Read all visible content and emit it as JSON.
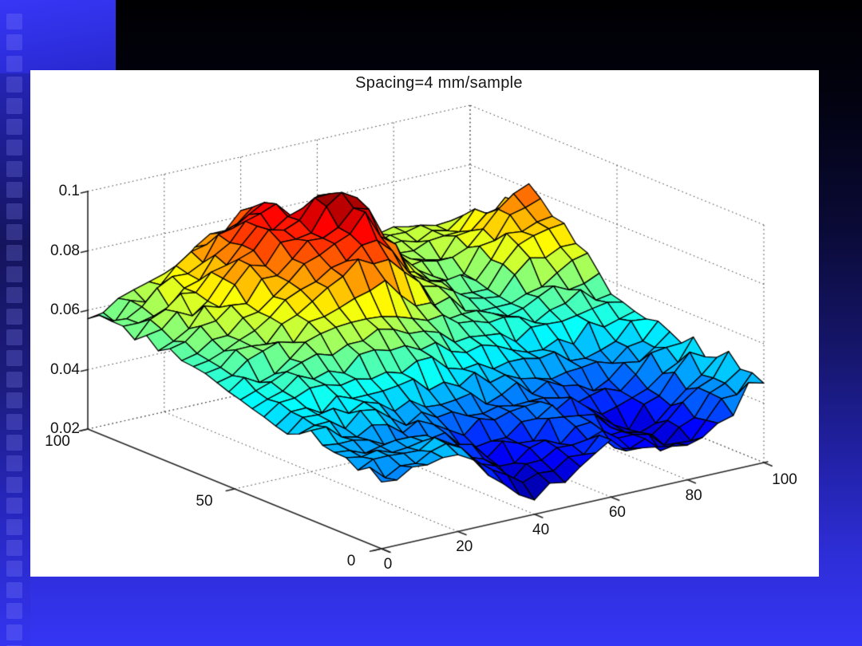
{
  "slide": {
    "background_top_color": "#000002",
    "background_bottom_color": "#3535f5",
    "accent_blue": "#3333f0",
    "sidebar": {
      "square_count": 31
    }
  },
  "chart_data": {
    "type": "surface",
    "title": "Spacing=4 mm/sample",
    "colormap": "jet",
    "grid_style": "dotted",
    "legend": "none",
    "x_axis": {
      "range": [
        0,
        100
      ],
      "ticks": [
        0,
        20,
        40,
        60,
        80,
        100
      ],
      "tick_labels": [
        "0",
        "20",
        "40",
        "60",
        "80",
        "100"
      ]
    },
    "y_axis": {
      "range": [
        0,
        100
      ],
      "ticks": [
        0,
        50,
        100
      ],
      "tick_labels": [
        "0",
        "50",
        "100"
      ]
    },
    "z_axis": {
      "range": [
        0.02,
        0.1
      ],
      "ticks": [
        0.02,
        0.04,
        0.06,
        0.08,
        0.1
      ],
      "tick_labels": [
        "0.02",
        "0.04",
        "0.06",
        "0.08",
        "0.1"
      ]
    },
    "sample_spacing_mm_per_sample": 4,
    "mesh_divisions": 25,
    "surface_z_estimates": {
      "x_coords": [
        0,
        10,
        20,
        30,
        40,
        50,
        60,
        70,
        80,
        90,
        100
      ],
      "y_coords": [
        0,
        10,
        20,
        30,
        40,
        50,
        60,
        70,
        80,
        90,
        100
      ],
      "values_rows_y0_to_y100": [
        [
          0.044,
          0.042,
          0.046,
          0.035,
          0.027,
          0.031,
          0.037,
          0.034,
          0.03,
          0.04,
          0.048
        ],
        [
          0.046,
          0.044,
          0.048,
          0.039,
          0.03,
          0.033,
          0.039,
          0.035,
          0.028,
          0.038,
          0.05
        ],
        [
          0.047,
          0.046,
          0.044,
          0.041,
          0.036,
          0.038,
          0.04,
          0.036,
          0.031,
          0.042,
          0.05
        ],
        [
          0.048,
          0.048,
          0.047,
          0.045,
          0.043,
          0.042,
          0.043,
          0.039,
          0.038,
          0.045,
          0.05
        ],
        [
          0.05,
          0.052,
          0.054,
          0.056,
          0.055,
          0.051,
          0.049,
          0.046,
          0.044,
          0.048,
          0.052
        ],
        [
          0.052,
          0.056,
          0.06,
          0.064,
          0.066,
          0.06,
          0.056,
          0.054,
          0.052,
          0.056,
          0.056
        ],
        [
          0.054,
          0.059,
          0.065,
          0.072,
          0.08,
          0.076,
          0.062,
          0.057,
          0.056,
          0.062,
          0.064
        ],
        [
          0.056,
          0.062,
          0.07,
          0.078,
          0.086,
          0.094,
          0.07,
          0.06,
          0.058,
          0.072,
          0.076
        ],
        [
          0.058,
          0.064,
          0.073,
          0.082,
          0.088,
          0.096,
          0.072,
          0.062,
          0.06,
          0.074,
          0.078
        ],
        [
          0.06,
          0.064,
          0.071,
          0.082,
          0.088,
          0.08,
          0.07,
          0.066,
          0.064,
          0.068,
          0.07
        ],
        [
          0.057,
          0.062,
          0.067,
          0.074,
          0.08,
          0.076,
          0.068,
          0.066,
          0.065,
          0.06,
          0.058
        ]
      ]
    }
  }
}
